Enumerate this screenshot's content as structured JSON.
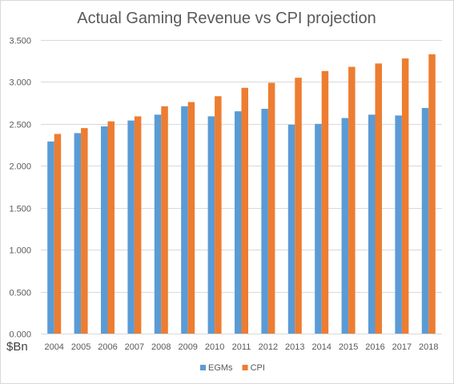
{
  "chart_data": {
    "type": "bar",
    "title": "Actual Gaming Revenue vs CPI projection",
    "ylabel": "$Bn",
    "xlabel": "",
    "categories": [
      "2004",
      "2005",
      "2006",
      "2007",
      "2008",
      "2009",
      "2010",
      "2011",
      "2012",
      "2013",
      "2014",
      "2015",
      "2016",
      "2017",
      "2018"
    ],
    "series": [
      {
        "name": "EGMs",
        "color": "#5b9bd5",
        "values": [
          2.29,
          2.39,
          2.47,
          2.54,
          2.61,
          2.71,
          2.59,
          2.65,
          2.68,
          2.49,
          2.5,
          2.57,
          2.61,
          2.6,
          2.69
        ]
      },
      {
        "name": "CPI",
        "color": "#ed7d31",
        "values": [
          2.38,
          2.45,
          2.53,
          2.59,
          2.71,
          2.76,
          2.83,
          2.93,
          2.99,
          3.05,
          3.13,
          3.18,
          3.22,
          3.28,
          3.33
        ]
      }
    ],
    "ylim": [
      0,
      3.5
    ],
    "yticks": [
      "0.000",
      "0.500",
      "1.000",
      "1.500",
      "2.000",
      "2.500",
      "3.000",
      "3.500"
    ],
    "grid": true,
    "legend_position": "bottom"
  }
}
